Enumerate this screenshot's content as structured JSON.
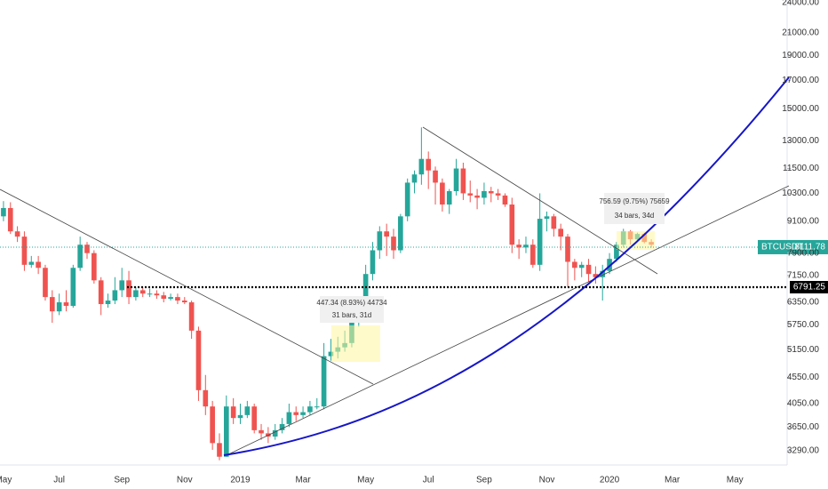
{
  "chart_data": {
    "type": "candlestick",
    "symbol": "BTCUSDT",
    "last_price": 8111.78,
    "level": 6791.25,
    "up_color": "#26a69a",
    "down_color": "#ef5350",
    "log_scale": true,
    "ylim": [
      3085,
      24290
    ],
    "yticks": [
      {
        "value": 3290,
        "label": "3290.00"
      },
      {
        "value": 3650,
        "label": "3650.00"
      },
      {
        "value": 4050,
        "label": "4050.00"
      },
      {
        "value": 4550,
        "label": "4550.00"
      },
      {
        "value": 5150,
        "label": "5150.00"
      },
      {
        "value": 5750,
        "label": "5750.00"
      },
      {
        "value": 6350,
        "label": "6350.00"
      },
      {
        "value": 7150,
        "label": "7150.00"
      },
      {
        "value": 7900,
        "label": "7900.00"
      },
      {
        "value": 9100,
        "label": "9100.00"
      },
      {
        "value": 10300,
        "label": "10300.00"
      },
      {
        "value": 11500,
        "label": "11500.00"
      },
      {
        "value": 13000,
        "label": "13000.00"
      },
      {
        "value": 15000,
        "label": "15000.00"
      },
      {
        "value": 17000,
        "label": "17000.00"
      },
      {
        "value": 19000,
        "label": "19000.00"
      },
      {
        "value": 21000,
        "label": "21000.00"
      },
      {
        "value": 24000,
        "label": "24000.00"
      }
    ],
    "categories": [
      "May",
      null,
      null,
      null,
      null,
      null,
      null,
      null,
      "Jul",
      null,
      null,
      null,
      null,
      null,
      null,
      null,
      null,
      "Sep",
      null,
      null,
      null,
      null,
      null,
      null,
      null,
      null,
      "Nov",
      null,
      null,
      null,
      null,
      null,
      null,
      null,
      "2019",
      null,
      null,
      null,
      null,
      null,
      null,
      null,
      null,
      "Mar",
      null,
      null,
      null,
      null,
      null,
      null,
      null,
      null,
      "May",
      null,
      null,
      null,
      null,
      null,
      null,
      null,
      null,
      "Jul",
      null,
      null,
      null,
      null,
      null,
      null,
      null,
      "Sep",
      null,
      null,
      null,
      null,
      null,
      null,
      null,
      null,
      "Nov",
      null,
      null,
      null,
      null,
      null,
      null,
      null,
      null,
      "2020",
      null,
      null,
      null,
      null,
      null,
      null,
      null,
      null,
      "Mar",
      null,
      null,
      null,
      null,
      null,
      null,
      null,
      null,
      "May",
      null,
      null,
      null,
      null,
      null,
      null,
      null
    ],
    "open": [
      9300,
      9650,
      8700,
      8500,
      7500,
      7600,
      7400,
      6500,
      6100,
      6350,
      6250,
      7400,
      8200,
      7900,
      7000,
      6300,
      6400,
      6700,
      7000,
      6500,
      6700,
      6600,
      6600,
      6550,
      6450,
      6500,
      6400,
      6350,
      5600,
      4300,
      4000,
      3400,
      3200,
      4000,
      3800,
      3850,
      4000,
      3600,
      3550,
      3500,
      3600,
      3700,
      3900,
      3850,
      3900,
      4000,
      4000,
      5000,
      5100,
      5200,
      5300,
      5800,
      6400,
      7200,
      8000,
      8700,
      8500,
      8000,
      9300,
      10800,
      11200,
      12000,
      11400,
      10800,
      9800,
      10400,
      11500,
      10300,
      10200,
      10100,
      10400,
      10300,
      10200,
      9800,
      8200,
      8100,
      8200,
      7500,
      9200,
      9300,
      8800,
      8500,
      7600,
      7400,
      7500,
      7200,
      7100,
      7300,
      7700,
      8200,
      8700,
      8400,
      8600,
      8300,
      null,
      null,
      null,
      null,
      null,
      null,
      null,
      null,
      null,
      null,
      null,
      null,
      null,
      null,
      null,
      null,
      null,
      null,
      null
    ],
    "high": [
      9950,
      9900,
      8900,
      8700,
      7800,
      7800,
      7500,
      6700,
      6600,
      6700,
      7500,
      8500,
      8300,
      8000,
      7100,
      6600,
      7100,
      7400,
      7300,
      6800,
      6800,
      6750,
      6700,
      6650,
      6600,
      6600,
      6500,
      6400,
      5700,
      4600,
      4100,
      3550,
      4200,
      4150,
      4050,
      4100,
      4050,
      3700,
      3650,
      3700,
      3800,
      4050,
      4000,
      4000,
      4100,
      4150,
      5300,
      5400,
      5450,
      5600,
      6000,
      6500,
      7500,
      8300,
      8900,
      9000,
      8800,
      9400,
      11000,
      11400,
      13800,
      12400,
      11600,
      11000,
      10500,
      12000,
      11800,
      10900,
      10500,
      10800,
      10600,
      10500,
      10300,
      10100,
      8400,
      8500,
      8400,
      10300,
      9500,
      9400,
      9000,
      8600,
      7700,
      7600,
      7700,
      7450,
      7500,
      7900,
      8300,
      8800,
      8750,
      8650,
      8650,
      8400,
      null,
      null,
      null,
      null,
      null,
      null,
      null,
      null,
      null,
      null,
      null,
      null,
      null,
      null,
      null,
      null,
      null,
      null,
      null
    ],
    "low": [
      9100,
      8600,
      8300,
      7300,
      7400,
      7200,
      6400,
      5800,
      6000,
      6100,
      6200,
      7300,
      7700,
      6900,
      6000,
      6200,
      6300,
      6500,
      6300,
      6400,
      6500,
      6500,
      6450,
      6350,
      6400,
      6300,
      6300,
      5400,
      4100,
      3850,
      3300,
      3150,
      3200,
      3700,
      3700,
      3800,
      3550,
      3450,
      3400,
      3450,
      3550,
      3650,
      3750,
      3800,
      3850,
      3950,
      3950,
      4900,
      4950,
      5100,
      5200,
      5700,
      6300,
      7000,
      7700,
      7800,
      7700,
      7900,
      9100,
      10300,
      10700,
      10500,
      9800,
      9500,
      9400,
      10200,
      10000,
      9900,
      9600,
      9800,
      9900,
      10000,
      9700,
      7900,
      7700,
      7900,
      7400,
      7300,
      8700,
      8500,
      8000,
      6800,
      7000,
      7100,
      6950,
      6900,
      6400,
      7200,
      7600,
      8100,
      8200,
      8300,
      8250,
      8100,
      null,
      null,
      null,
      null,
      null,
      null,
      null,
      null,
      null,
      null,
      null,
      null,
      null,
      null,
      null,
      null,
      null,
      null,
      null
    ],
    "close": [
      9650,
      8700,
      8500,
      7500,
      7600,
      7400,
      6500,
      6100,
      6350,
      6250,
      7400,
      8200,
      7900,
      7000,
      6300,
      6400,
      6700,
      7000,
      6500,
      6700,
      6600,
      6600,
      6550,
      6450,
      6500,
      6400,
      6350,
      5600,
      4300,
      4000,
      3400,
      3200,
      4000,
      3800,
      3850,
      4000,
      3600,
      3550,
      3500,
      3600,
      3700,
      3900,
      3850,
      3900,
      4000,
      4000,
      5000,
      5100,
      5200,
      5300,
      5800,
      6400,
      7200,
      8000,
      8700,
      8500,
      8000,
      9300,
      10800,
      11200,
      12000,
      11400,
      10800,
      9800,
      10400,
      11500,
      10300,
      10200,
      10100,
      10400,
      10300,
      10200,
      9800,
      8200,
      8100,
      8200,
      7500,
      9200,
      9300,
      8800,
      8500,
      7600,
      7400,
      7500,
      7200,
      7100,
      7300,
      7700,
      8200,
      8700,
      8400,
      8600,
      8300,
      8200,
      null,
      null,
      null,
      null,
      null,
      null,
      null,
      null,
      null,
      null,
      null,
      null,
      null,
      null,
      null,
      null,
      null,
      null,
      null
    ],
    "annotations": [
      {
        "line1": "447.34 (8.93%) 44734",
        "line2": "31 bars, 31d"
      },
      {
        "line1": "756.59 (9.75%) 75659",
        "line2": "34 bars, 34d"
      }
    ]
  }
}
